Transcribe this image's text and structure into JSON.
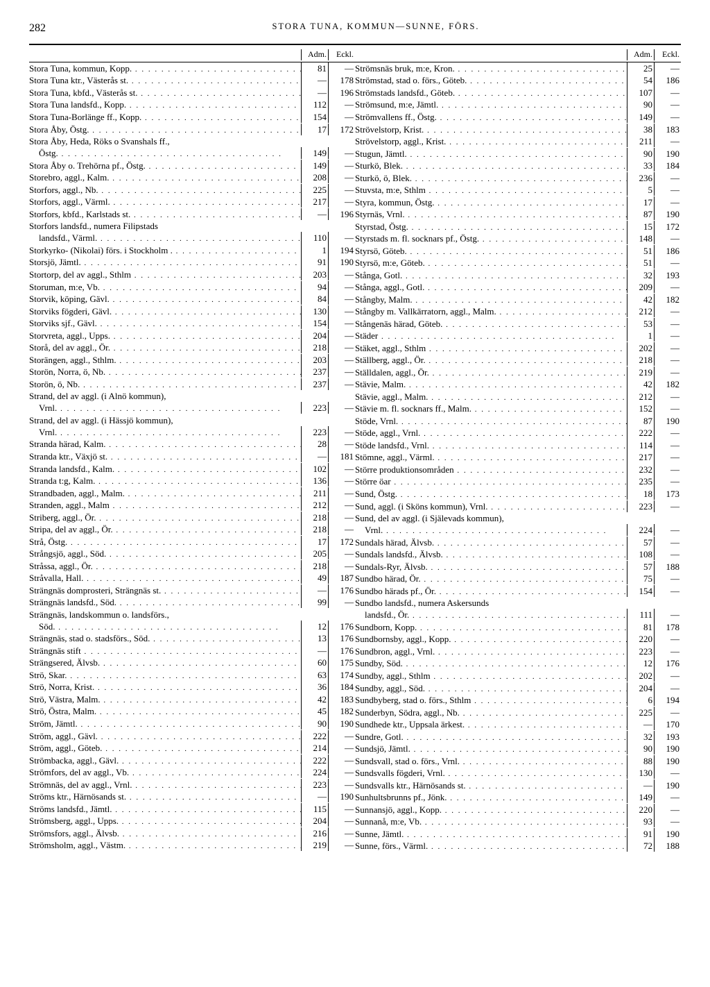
{
  "page": {
    "number": "282",
    "title": "STORA TUNA, KOMMUN—SUNNE, FÖRS."
  },
  "colheads": {
    "adm": "Adm.",
    "eckl": "Eckl."
  },
  "left": [
    {
      "n": "Stora Tuna, kommun, Kopp.",
      "a": "81",
      "e": "—"
    },
    {
      "n": "Stora Tuna ktr., Västerås st.",
      "a": "—",
      "e": "178"
    },
    {
      "n": "Stora Tuna, kbfd., Västerås st.",
      "a": "—",
      "e": "196"
    },
    {
      "n": "Stora Tuna landsfd., Kopp.",
      "a": "112",
      "e": "—"
    },
    {
      "n": "Stora Tuna-Borlänge ff., Kopp.",
      "a": "154",
      "e": "—"
    },
    {
      "n": "Stora Åby, Östg.",
      "a": "17",
      "e": "172"
    },
    {
      "n": "Stora Åby, Heda, Röks o Svanshals ff.,",
      "a": "",
      "e": ""
    },
    {
      "n": "Östg.",
      "a": "149",
      "e": "—",
      "indent": true
    },
    {
      "n": "Stora Åby o. Trehörna pf., Östg.",
      "a": "149",
      "e": "—"
    },
    {
      "n": "Storebro, aggl., Kalm.",
      "a": "208",
      "e": "—"
    },
    {
      "n": "Storfors, aggl., Nb.",
      "a": "225",
      "e": "—"
    },
    {
      "n": "Storfors, aggl., Värml.",
      "a": "217",
      "e": "—"
    },
    {
      "n": "Storfors, kbfd., Karlstads st.",
      "a": "—",
      "e": "196"
    },
    {
      "n": "Storfors landsfd., numera Filipstads",
      "a": "",
      "e": ""
    },
    {
      "n": "landsfd., Värml.",
      "a": "110",
      "e": "—",
      "indent": true
    },
    {
      "n": "Storkyrko- (Nikolai) förs. i Stockholm .",
      "a": "1",
      "e": "194"
    },
    {
      "n": "Storsjö, Jämtl.",
      "a": "91",
      "e": "190"
    },
    {
      "n": "Stortorp, del av aggl., Sthlm",
      "a": "203",
      "e": "—"
    },
    {
      "n": "Storuman, m:e, Vb.",
      "a": "94",
      "e": "—"
    },
    {
      "n": "Storvik, köping, Gävl.",
      "a": "84",
      "e": "—"
    },
    {
      "n": "Storviks fögderi, Gävl.",
      "a": "130",
      "e": "—"
    },
    {
      "n": "Storviks sjf., Gävl.",
      "a": "154",
      "e": "—"
    },
    {
      "n": "Storvreta, aggl., Upps.",
      "a": "204",
      "e": "—"
    },
    {
      "n": "Storå, del av aggl., Ör.",
      "a": "218",
      "e": "—"
    },
    {
      "n": "Storängen, aggl., Sthlm.",
      "a": "203",
      "e": "—"
    },
    {
      "n": "Storön, Norra, ö, Nb.",
      "a": "237",
      "e": "—"
    },
    {
      "n": "Storön, ö, Nb.",
      "a": "237",
      "e": "—"
    },
    {
      "n": "Strand, del av aggl. (i Alnö kommun),",
      "a": "",
      "e": ""
    },
    {
      "n": "Vrnl.",
      "a": "223",
      "e": "—",
      "indent": true
    },
    {
      "n": "Strand, del av aggl. (i Hässjö kommun),",
      "a": "",
      "e": ""
    },
    {
      "n": "Vrnl.",
      "a": "223",
      "e": "—",
      "indent": true
    },
    {
      "n": "Stranda härad, Kalm.",
      "a": "28",
      "e": "—"
    },
    {
      "n": "Stranda ktr., Växjö st.",
      "a": "—",
      "e": "181"
    },
    {
      "n": "Stranda landsfd., Kalm.",
      "a": "102",
      "e": "—"
    },
    {
      "n": "Stranda t:g, Kalm.",
      "a": "136",
      "e": "—"
    },
    {
      "n": "Strandbaden, aggl., Malm.",
      "a": "211",
      "e": "—"
    },
    {
      "n": "Stranden, aggl., Malm",
      "a": "212",
      "e": "—"
    },
    {
      "n": "Striberg, aggl., Ör.",
      "a": "218",
      "e": "—"
    },
    {
      "n": "Stripa, del av aggl., Ör.",
      "a": "218",
      "e": "—"
    },
    {
      "n": "Strå, Östg.",
      "a": "17",
      "e": "172"
    },
    {
      "n": "Strångsjö, aggl., Söd.",
      "a": "205",
      "e": "—"
    },
    {
      "n": "Stråssa, aggl., Ör.",
      "a": "218",
      "e": "—"
    },
    {
      "n": "Stråvalla, Hall.",
      "a": "49",
      "e": "187"
    },
    {
      "n": "Strängnäs domprosteri, Strängnäs st.",
      "a": "—",
      "e": "176"
    },
    {
      "n": "Strängnäs landsfd., Söd.",
      "a": "99",
      "e": "—"
    },
    {
      "n": "Strängnäs, landskommun o. landsförs.,",
      "a": "",
      "e": ""
    },
    {
      "n": "Söd.",
      "a": "12",
      "e": "176",
      "indent": true
    },
    {
      "n": "Strängnäs, stad o. stadsförs., Söd.",
      "a": "13",
      "e": "176"
    },
    {
      "n": "Strängnäs stift",
      "a": "—",
      "e": "176"
    },
    {
      "n": "Strängsered, Älvsb.",
      "a": "60",
      "e": "175"
    },
    {
      "n": "Strö, Skar.",
      "a": "63",
      "e": "174"
    },
    {
      "n": "Strö, Norra, Krist.",
      "a": "36",
      "e": "184"
    },
    {
      "n": "Strö, Västra, Malm.",
      "a": "42",
      "e": "183"
    },
    {
      "n": "Strö, Östra, Malm.",
      "a": "45",
      "e": "182"
    },
    {
      "n": "Ström, Jämtl.",
      "a": "90",
      "e": "190"
    },
    {
      "n": "Ström, aggl., Gävl.",
      "a": "222",
      "e": "—"
    },
    {
      "n": "Ström, aggl., Göteb.",
      "a": "214",
      "e": "—"
    },
    {
      "n": "Strömbacka, aggl., Gävl.",
      "a": "222",
      "e": "—"
    },
    {
      "n": "Strömfors, del av aggl., Vb.",
      "a": "224",
      "e": "—"
    },
    {
      "n": "Strömnäs, del av aggl., Vrnl.",
      "a": "223",
      "e": "—"
    },
    {
      "n": "Ströms ktr., Härnösands st.",
      "a": "—",
      "e": "190"
    },
    {
      "n": "Ströms landsfd., Jämtl.",
      "a": "115",
      "e": "—"
    },
    {
      "n": "Strömsberg, aggl., Upps.",
      "a": "204",
      "e": "—"
    },
    {
      "n": "Strömsfors, aggl., Älvsb.",
      "a": "216",
      "e": "—"
    },
    {
      "n": "Strömsholm, aggl., Västm.",
      "a": "219",
      "e": "—"
    }
  ],
  "right": [
    {
      "n": "Strömsnäs bruk, m:e, Kron.",
      "a": "25",
      "e": "—"
    },
    {
      "n": "Strömstad, stad o. förs., Göteb.",
      "a": "54",
      "e": "186"
    },
    {
      "n": "Strömstads landsfd., Göteb.",
      "a": "107",
      "e": "—"
    },
    {
      "n": "Strömsund, m:e, Jämtl.",
      "a": "90",
      "e": "—"
    },
    {
      "n": "Strömvallens ff., Östg.",
      "a": "149",
      "e": "—"
    },
    {
      "n": "Strövelstorp, Krist.",
      "a": "38",
      "e": "183"
    },
    {
      "n": "Strövelstorp, aggl., Krist.",
      "a": "211",
      "e": "—"
    },
    {
      "n": "Stugun, Jämtl.",
      "a": "90",
      "e": "190"
    },
    {
      "n": "Sturkö, Blek.",
      "a": "33",
      "e": "184"
    },
    {
      "n": "Sturkö, ö, Blek.",
      "a": "236",
      "e": "—"
    },
    {
      "n": "Stuvsta, m:e, Sthlm",
      "a": "5",
      "e": "—"
    },
    {
      "n": "Styra, kommun, Östg.",
      "a": "17",
      "e": "—"
    },
    {
      "n": "Styrnäs, Vrnl.",
      "a": "87",
      "e": "190"
    },
    {
      "n": "Styrstad, Östg.",
      "a": "15",
      "e": "172"
    },
    {
      "n": "Styrstads m. fl. socknars pf., Östg.",
      "a": "148",
      "e": "—"
    },
    {
      "n": "Styrsö, Göteb.",
      "a": "51",
      "e": "186"
    },
    {
      "n": "Styrsö, m:e, Göteb.",
      "a": "51",
      "e": "—"
    },
    {
      "n": "Stånga, Gotl.",
      "a": "32",
      "e": "193"
    },
    {
      "n": "Stånga, aggl., Gotl.",
      "a": "209",
      "e": "—"
    },
    {
      "n": "Stångby, Malm.",
      "a": "42",
      "e": "182"
    },
    {
      "n": "Stångby m. Vallkärratorn, aggl., Malm.",
      "a": "212",
      "e": "—"
    },
    {
      "n": "Stångenäs härad, Göteb.",
      "a": "53",
      "e": "—"
    },
    {
      "n": "Städer",
      "a": "1",
      "e": "—"
    },
    {
      "n": "Stäket, aggl., Sthlm",
      "a": "202",
      "e": "—"
    },
    {
      "n": "Ställberg, aggl., Ör.",
      "a": "218",
      "e": "—"
    },
    {
      "n": "Ställdalen, aggl., Ör.",
      "a": "219",
      "e": "—"
    },
    {
      "n": "Stävie, Malm.",
      "a": "42",
      "e": "182"
    },
    {
      "n": "Stävie, aggl., Malm.",
      "a": "212",
      "e": "—"
    },
    {
      "n": "Stävie m. fl. socknars ff., Malm.",
      "a": "152",
      "e": "—"
    },
    {
      "n": "Stöde, Vrnl.",
      "a": "87",
      "e": "190"
    },
    {
      "n": "Stöde, aggl., Vrnl.",
      "a": "222",
      "e": "—"
    },
    {
      "n": "Stöde landsfd., Vrnl.",
      "a": "114",
      "e": "—"
    },
    {
      "n": "Stömne, aggl., Värml.",
      "a": "217",
      "e": "—"
    },
    {
      "n": "Större produktionsområden",
      "a": "232",
      "e": "—"
    },
    {
      "n": "Större öar",
      "a": "235",
      "e": "—"
    },
    {
      "n": "Sund, Östg.",
      "a": "18",
      "e": "173"
    },
    {
      "n": "Sund, aggl. (i Sköns kommun), Vrnl.",
      "a": "223",
      "e": "—"
    },
    {
      "n": "Sund, del av aggl. (i Själevads kommun),",
      "a": "",
      "e": ""
    },
    {
      "n": "Vrnl.",
      "a": "224",
      "e": "—",
      "indent": true
    },
    {
      "n": "Sundals härad, Älvsb.",
      "a": "57",
      "e": "—"
    },
    {
      "n": "Sundals landsfd., Älvsb.",
      "a": "108",
      "e": "—"
    },
    {
      "n": "Sundals-Ryr, Älvsb.",
      "a": "57",
      "e": "188"
    },
    {
      "n": "Sundbo härad, Ör.",
      "a": "75",
      "e": "—"
    },
    {
      "n": "Sundbo härads pf., Ör.",
      "a": "154",
      "e": "—"
    },
    {
      "n": "Sundbo landsfd., numera Askersunds",
      "a": "",
      "e": ""
    },
    {
      "n": "landsfd., Ör.",
      "a": "111",
      "e": "—",
      "indent": true
    },
    {
      "n": "Sundborn, Kopp.",
      "a": "81",
      "e": "178"
    },
    {
      "n": "Sundbornsby, aggl., Kopp.",
      "a": "220",
      "e": "—"
    },
    {
      "n": "Sundbron, aggl., Vrnl.",
      "a": "223",
      "e": "—"
    },
    {
      "n": "Sundby, Söd.",
      "a": "12",
      "e": "176"
    },
    {
      "n": "Sundby, aggl., Sthlm",
      "a": "202",
      "e": "—"
    },
    {
      "n": "Sundby, aggl., Söd.",
      "a": "204",
      "e": "—"
    },
    {
      "n": "Sundbyberg, stad o. förs., Sthlm",
      "a": "6",
      "e": "194"
    },
    {
      "n": "Sunderbyn, Södra, aggl., Nb.",
      "a": "225",
      "e": "—"
    },
    {
      "n": "Sundhede ktr., Uppsala ärkest.",
      "a": "—",
      "e": "170"
    },
    {
      "n": "Sundre, Gotl.",
      "a": "32",
      "e": "193"
    },
    {
      "n": "Sundsjö, Jämtl.",
      "a": "90",
      "e": "190"
    },
    {
      "n": "Sundsvall, stad o. förs., Vrnl.",
      "a": "88",
      "e": "190"
    },
    {
      "n": "Sundsvalls fögderi, Vrnl.",
      "a": "130",
      "e": "—"
    },
    {
      "n": "Sundsvalls ktr., Härnösands st.",
      "a": "—",
      "e": "190"
    },
    {
      "n": "Sunhultsbrunns pf., Jönk.",
      "a": "149",
      "e": "—"
    },
    {
      "n": "Sunnansjö, aggl., Kopp.",
      "a": "220",
      "e": "—"
    },
    {
      "n": "Sunnanå, m:e, Vb.",
      "a": "93",
      "e": "—"
    },
    {
      "n": "Sunne, Jämtl.",
      "a": "91",
      "e": "190"
    },
    {
      "n": "Sunne, förs., Värml.",
      "a": "72",
      "e": "188"
    }
  ]
}
